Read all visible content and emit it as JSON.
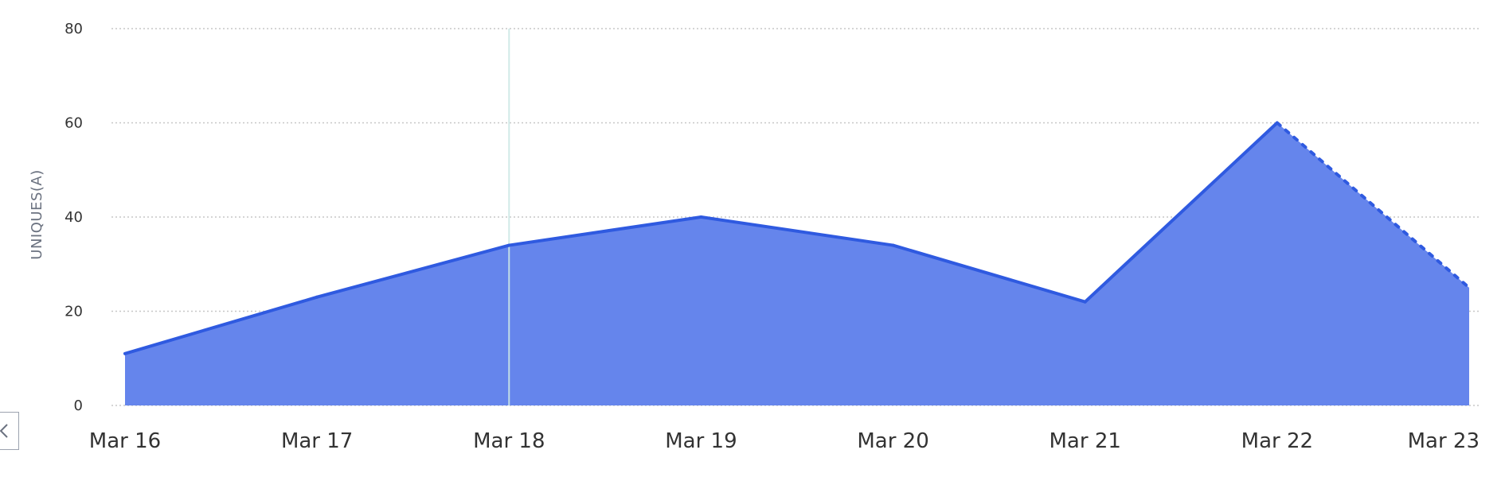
{
  "chart_data": {
    "type": "area",
    "x": [
      "Mar 16",
      "Mar 17",
      "Mar 18",
      "Mar 19",
      "Mar 20",
      "Mar 21",
      "Mar 22",
      "Mar 23"
    ],
    "series": [
      {
        "values": [
          11,
          23,
          34,
          40,
          34,
          22,
          60,
          25
        ]
      }
    ],
    "ylabel": "UNIQUES(A)",
    "yticks": [
      0,
      20,
      40,
      60,
      80
    ],
    "ylim": [
      0,
      80
    ],
    "grid": true,
    "incomplete_from_index": 6,
    "hover_marker_index": 2
  },
  "colors": {
    "area_fill": "#6585ec",
    "line": "#2f5ae0",
    "hover_line": "#cde8e6"
  },
  "icons": {
    "collapse": "chevron-left-icon"
  }
}
